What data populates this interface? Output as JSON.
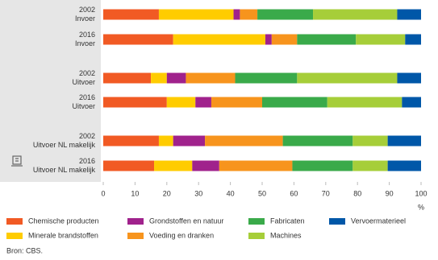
{
  "chart_data": {
    "type": "stacked_bar_horizontal",
    "categories": [
      "2002\nInvoer",
      "2016\nInvoer",
      "2002\nUitvoer",
      "2016\nUitvoer",
      "2002\nUitvoer NL makelijk",
      "2016\nUitvoer NL makelijk"
    ],
    "series": [
      {
        "name": "Chemische producten",
        "color": "#f15a24",
        "values": [
          17.5,
          22,
          15,
          20,
          17.5,
          16
        ]
      },
      {
        "name": "Minerale brandstoffen",
        "color": "#ffcc00",
        "values": [
          23.5,
          29,
          5,
          9,
          4.5,
          12
        ]
      },
      {
        "name": "Grondstoffen en natuur",
        "color": "#a0228c",
        "values": [
          2,
          2,
          6,
          5,
          10,
          8.5
        ]
      },
      {
        "name": "Voeding en dranken",
        "color": "#f7941d",
        "values": [
          5.5,
          8,
          15.5,
          16,
          24.5,
          23
        ]
      },
      {
        "name": "Fabricaten",
        "color": "#3aaa4a",
        "values": [
          17.5,
          18.5,
          19.5,
          20.5,
          22,
          19
        ]
      },
      {
        "name": "Machines",
        "color": "#a6ce39",
        "values": [
          26.5,
          15.5,
          31.5,
          23.5,
          11,
          11
        ]
      },
      {
        "name": "Vervoermaterieel",
        "color": "#0057a8",
        "values": [
          7.5,
          5,
          7.5,
          6,
          10.5,
          10.5
        ]
      }
    ],
    "xlim": [
      0,
      100
    ],
    "xticks": [
      0,
      10,
      20,
      30,
      40,
      50,
      60,
      70,
      80,
      90,
      100
    ],
    "x_unit": "%",
    "grid": false,
    "source": "Bron: CBS."
  }
}
